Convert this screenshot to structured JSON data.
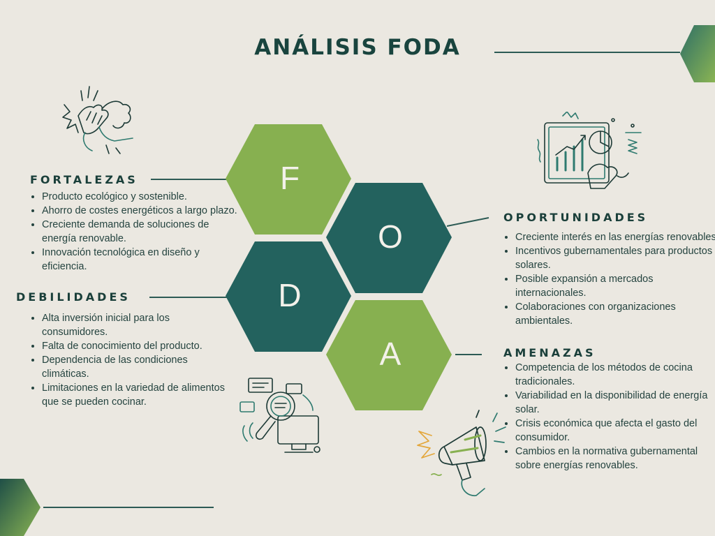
{
  "title": "ANÁLISIS FODA",
  "hexes": {
    "f": "F",
    "o": "O",
    "d": "D",
    "a": "A"
  },
  "colors": {
    "dark_green": "#23625e",
    "light_green": "#87b050",
    "background": "#ebe8e1",
    "text": "#1f4a44"
  },
  "fortalezas": {
    "heading": "FORTALEZAS",
    "items": [
      "Producto ecológico y sostenible.",
      "Ahorro de costes energéticos a largo plazo.",
      "Creciente demanda de soluciones de energía renovable.",
      "Innovación tecnológica en diseño y eficiencia."
    ]
  },
  "debilidades": {
    "heading": "DEBILIDADES",
    "items": [
      "Alta inversión inicial para los consumidores.",
      "Falta de conocimiento del producto.",
      "Dependencia de las condiciones climáticas.",
      "Limitaciones en la variedad de alimentos que se pueden cocinar."
    ]
  },
  "oportunidades": {
    "heading": "OPORTUNIDADES",
    "items": [
      "Creciente interés en las energías renovables.",
      "Incentivos gubernamentales para productos solares.",
      "Posible expansión a mercados internacionales.",
      "Colaboraciones con organizaciones ambientales."
    ]
  },
  "amenazas": {
    "heading": "AMENAZAS",
    "items": [
      "Competencia de los métodos de cocina tradicionales.",
      "Variabilidad en la disponibilidad de energía solar.",
      "Crisis económica que afecta el gasto del consumidor.",
      "Cambios en la normativa gubernamental sobre energías renovables."
    ]
  }
}
